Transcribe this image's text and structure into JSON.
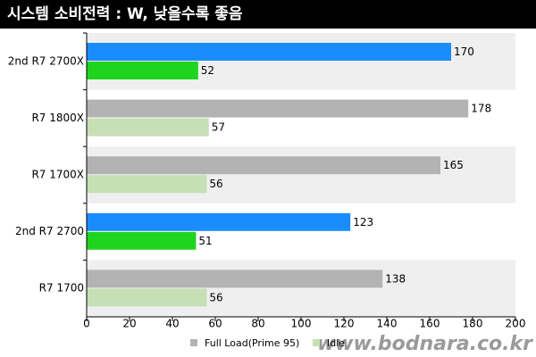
{
  "chart_data": {
    "type": "barh",
    "title": "시스템 소비전력 : W, 낮을수록 좋음",
    "categories": [
      "2nd R7 2700X",
      "R7 1800X",
      "R7 1700X",
      "2nd R7 2700",
      "R7 1700"
    ],
    "series": [
      {
        "name": "Full Load(Prime 95)",
        "color": "#b3b3b3",
        "bar_colors": [
          "#1a8cff",
          "#b3b3b3",
          "#b3b3b3",
          "#1a8cff",
          "#b3b3b3"
        ],
        "values": [
          170,
          178,
          165,
          123,
          138
        ]
      },
      {
        "name": "Idle",
        "color": "#c6dfb4",
        "bar_colors": [
          "#1fd41f",
          "#c6dfb4",
          "#c6dfb4",
          "#1fd41f",
          "#c6dfb4"
        ],
        "values": [
          52,
          57,
          56,
          51,
          56
        ]
      }
    ],
    "xlim": [
      0,
      200
    ],
    "xticks": [
      0,
      20,
      40,
      60,
      80,
      100,
      120,
      140,
      160,
      180,
      200
    ],
    "legend": "bottom",
    "watermark": "www.bodnara.co.kr"
  }
}
